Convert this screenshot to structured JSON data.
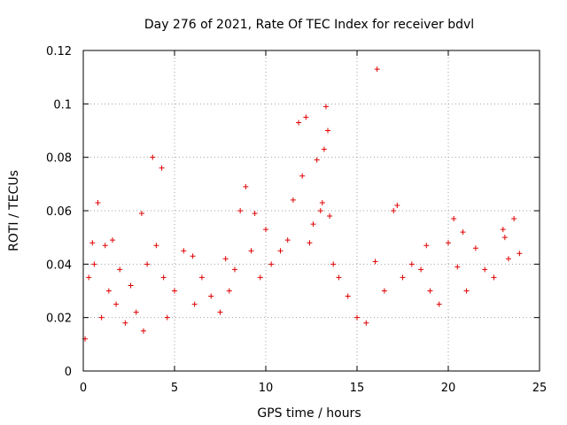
{
  "chart_data": {
    "type": "scatter",
    "title": "Day 276 of 2021, Rate Of TEC Index for receiver bdvl",
    "xlabel": "GPS time / hours",
    "ylabel": "ROTI / TECUs",
    "xlim": [
      0,
      25
    ],
    "ylim": [
      0,
      0.12
    ],
    "xticks": [
      0,
      5,
      10,
      15,
      20,
      25
    ],
    "xtick_labels": [
      "0",
      "5",
      "10",
      "15",
      "20",
      "25"
    ],
    "yticks": [
      0,
      0.02,
      0.04,
      0.06,
      0.08,
      0.1,
      0.12
    ],
    "ytick_labels": [
      "0",
      "0.02",
      "0.04",
      "0.06",
      "0.08",
      "0.1",
      "0.12"
    ],
    "grid": true,
    "marker": "+",
    "marker_color": "#e00000",
    "series": [
      {
        "name": "ROTI",
        "x": [
          0.1,
          0.3,
          0.5,
          0.6,
          0.8,
          1.0,
          1.2,
          1.4,
          1.6,
          1.8,
          2.0,
          2.3,
          2.6,
          2.9,
          3.2,
          3.3,
          3.5,
          3.8,
          4.0,
          4.3,
          4.4,
          4.6,
          5.0,
          5.5,
          6.0,
          6.1,
          6.5,
          7.0,
          7.5,
          7.8,
          8.0,
          8.3,
          8.6,
          8.9,
          9.2,
          9.4,
          9.7,
          10.0,
          10.3,
          10.8,
          11.2,
          11.5,
          11.8,
          12.0,
          12.2,
          12.4,
          12.6,
          12.8,
          13.0,
          13.1,
          13.2,
          13.3,
          13.4,
          13.5,
          13.7,
          14.0,
          14.5,
          15.0,
          15.5,
          16.0,
          16.1,
          16.5,
          17.0,
          17.2,
          17.5,
          18.0,
          18.5,
          18.8,
          19.0,
          19.5,
          20.0,
          20.3,
          20.5,
          20.8,
          21.0,
          21.5,
          22.0,
          22.5,
          23.0,
          23.1,
          23.3,
          23.6,
          23.9
        ],
        "y": [
          0.012,
          0.035,
          0.048,
          0.04,
          0.063,
          0.02,
          0.047,
          0.03,
          0.049,
          0.025,
          0.038,
          0.018,
          0.032,
          0.022,
          0.059,
          0.015,
          0.04,
          0.08,
          0.047,
          0.076,
          0.035,
          0.02,
          0.03,
          0.045,
          0.043,
          0.025,
          0.035,
          0.028,
          0.022,
          0.042,
          0.03,
          0.038,
          0.06,
          0.069,
          0.045,
          0.059,
          0.035,
          0.053,
          0.04,
          0.045,
          0.049,
          0.064,
          0.093,
          0.073,
          0.095,
          0.048,
          0.055,
          0.079,
          0.06,
          0.063,
          0.083,
          0.099,
          0.09,
          0.058,
          0.04,
          0.035,
          0.028,
          0.02,
          0.018,
          0.041,
          0.113,
          0.03,
          0.06,
          0.062,
          0.035,
          0.04,
          0.038,
          0.047,
          0.03,
          0.025,
          0.048,
          0.057,
          0.039,
          0.052,
          0.03,
          0.046,
          0.038,
          0.035,
          0.053,
          0.05,
          0.042,
          0.057,
          0.044
        ]
      }
    ]
  }
}
